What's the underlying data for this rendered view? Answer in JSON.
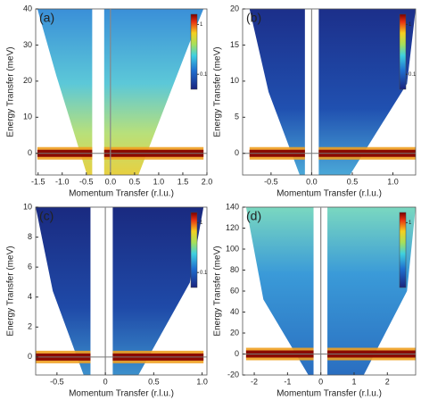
{
  "chart_data": [
    {
      "type": "heatmap",
      "panel_label": "(a)",
      "xlabel": "Momentum Transfer (r.l.u.)",
      "ylabel": "Energy Transfer (meV)",
      "xlim": [
        -1.55,
        2.0
      ],
      "ylim": [
        -6,
        40
      ],
      "xticks": [
        -1.5,
        {
          "value": -1.0,
          "label": "-1.0"
        },
        -0.5,
        {
          "value": 0.0,
          "label": "0.0"
        },
        0.5,
        {
          "value": 1.0,
          "label": "1.0"
        },
        1.5,
        {
          "value": 2.0,
          "label": "2.0"
        }
      ],
      "yticks": [
        0,
        10,
        20,
        30,
        40
      ],
      "colorbar": {
        "scale": "log",
        "clim": [
          0.05,
          1.6
        ],
        "ticks": [
          1,
          0.1
        ]
      }
    },
    {
      "type": "heatmap",
      "panel_label": "(b)",
      "xlabel": "Momentum Transfer (r.l.u.)",
      "ylabel": "Energy Transfer (meV)",
      "xlim": [
        -0.85,
        1.28
      ],
      "ylim": [
        -3,
        20
      ],
      "xticks": [
        -0.5,
        {
          "value": 0.0,
          "label": "0.0"
        },
        0.5,
        {
          "value": 1.0,
          "label": "1.0"
        }
      ],
      "yticks": [
        0,
        5,
        10,
        15,
        20
      ],
      "colorbar": {
        "scale": "log",
        "clim": [
          0.05,
          1.6
        ],
        "ticks": [
          1,
          0.1
        ]
      }
    },
    {
      "type": "heatmap",
      "panel_label": "(c)",
      "xlabel": "Momentum Transfer (r.l.u.)",
      "ylabel": "Energy Transfer (meV)",
      "xlim": [
        -0.72,
        1.05
      ],
      "ylim": [
        -1.2,
        10
      ],
      "xticks": [
        -0.5,
        0,
        0.5,
        {
          "value": 1.0,
          "label": "1.0"
        }
      ],
      "yticks": [
        0,
        2,
        4,
        6,
        8,
        10
      ],
      "colorbar": {
        "scale": "log",
        "clim": [
          0.05,
          1.6
        ],
        "ticks": [
          1,
          0.1
        ]
      }
    },
    {
      "type": "heatmap",
      "panel_label": "(d)",
      "xlabel": "Momentum Transfer (r.l.u.)",
      "ylabel": "Energy Transfer (meV)",
      "xlim": [
        -2.35,
        2.85
      ],
      "ylim": [
        -20,
        140
      ],
      "xticks": [
        -2,
        -1,
        0,
        1,
        2
      ],
      "yticks": [
        -20,
        0,
        20,
        40,
        60,
        80,
        100,
        120,
        140
      ],
      "colorbar": {
        "scale": "log",
        "clim": [
          0.05,
          1.6
        ],
        "ticks": [
          1
        ]
      }
    }
  ]
}
